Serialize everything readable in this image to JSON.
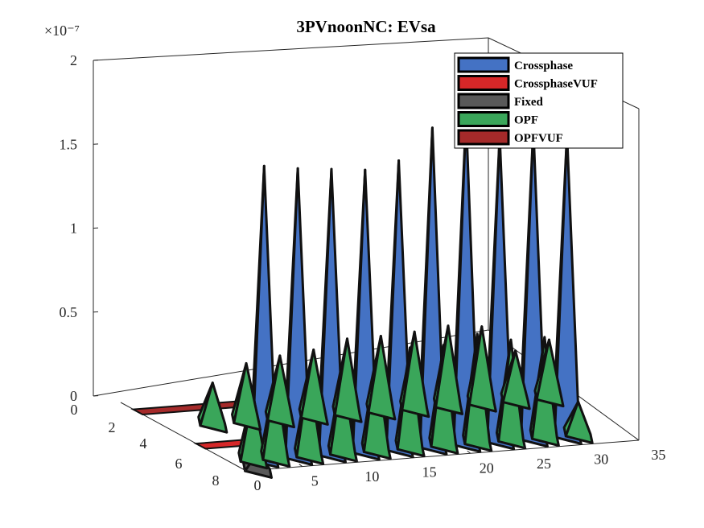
{
  "chart_data": {
    "type": "surface3d",
    "title": "3PVnoonNC: EVsa",
    "z_exponent": "×10⁻⁷",
    "x_ticks": [
      "0",
      "5",
      "10",
      "15",
      "20",
      "25",
      "30",
      "35"
    ],
    "y_ticks": [
      "0",
      "2",
      "4",
      "6",
      "8"
    ],
    "z_ticks": [
      "0",
      "0.5",
      "1",
      "1.5",
      "2"
    ],
    "xlim": [
      0,
      35
    ],
    "ylim": [
      0,
      8
    ],
    "zlim": [
      0,
      2e-07
    ],
    "legend": {
      "placement": "top-right",
      "entries": [
        {
          "name": "Crossphase",
          "color": "#4472c4"
        },
        {
          "name": "CrossphaseVUF",
          "color": "#d62728"
        },
        {
          "name": "Fixed",
          "color": "#595959"
        },
        {
          "name": "OPF",
          "color": "#3aa65a"
        },
        {
          "name": "OPFVUF",
          "color": "#a52a2a"
        }
      ]
    },
    "series": [
      {
        "name": "Crossphase",
        "color": "#4472c4",
        "row": 1,
        "x": [
          3,
          6,
          9,
          12,
          15,
          18,
          21,
          24,
          27,
          30
        ],
        "values": [
          1.75e-07,
          1.72e-07,
          1.7e-07,
          1.68e-07,
          1.72e-07,
          1.9e-07,
          1.95e-07,
          1.82e-07,
          1.85e-07,
          1.8e-07
        ]
      },
      {
        "name": "OPF",
        "color": "#3aa65a",
        "row": 1,
        "x": [
          2,
          4,
          7,
          10,
          13,
          16,
          19,
          22,
          25,
          28,
          31
        ],
        "values": [
          4e-08,
          5e-08,
          5e-08,
          5e-08,
          5.5e-08,
          6e-08,
          6e-08,
          6.5e-08,
          6e-08,
          6e-08,
          2e-08
        ]
      },
      {
        "name": "OPF",
        "color": "#3aa65a",
        "row": 5,
        "x": [
          4,
          7,
          10,
          13,
          16,
          19,
          22,
          25,
          28,
          31,
          34
        ],
        "values": [
          2.5e-08,
          3.5e-08,
          3.8e-08,
          4e-08,
          4.5e-08,
          4.5e-08,
          4.6e-08,
          4.8e-08,
          4.6e-08,
          3e-08,
          3.5e-08
        ]
      },
      {
        "name": "Fixed",
        "color": "#595959",
        "row": 0,
        "x": [
          1
        ],
        "values": [
          1e-08
        ]
      },
      {
        "name": "CrossphaseVUF",
        "color": "#d62728",
        "row": 3,
        "x": [],
        "values": []
      },
      {
        "name": "OPFVUF",
        "color": "#a52a2a",
        "row": 7,
        "x": [],
        "values": []
      }
    ]
  }
}
